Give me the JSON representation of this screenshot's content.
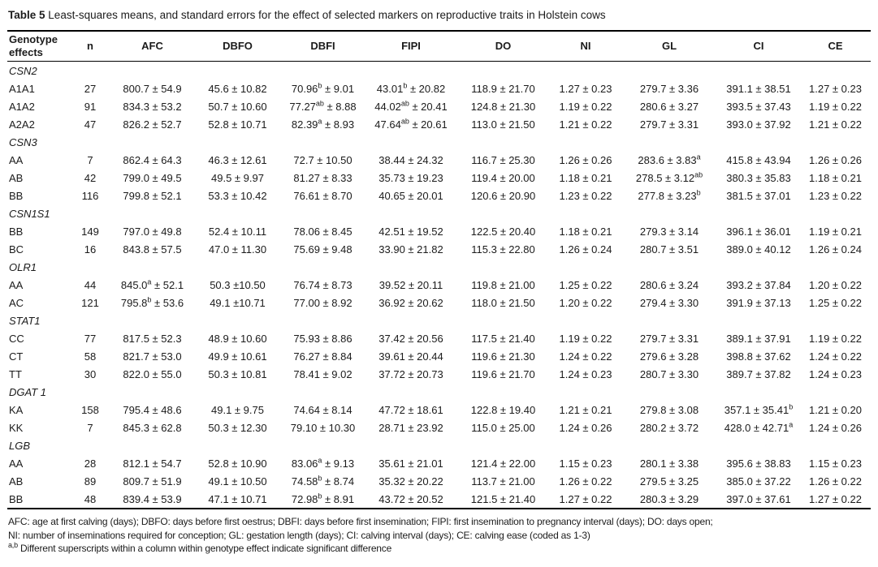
{
  "title": {
    "label": "Table 5",
    "text": "Least-squares means, and standard errors for the effect of selected markers on reproductive traits in Holstein cows"
  },
  "table": {
    "columns": [
      "Genotype effects",
      "n",
      "AFC",
      "DBFO",
      "DBFI",
      "FIPI",
      "DO",
      "NI",
      "GL",
      "CI",
      "CE"
    ],
    "groups": [
      {
        "gene": "CSN2",
        "rows": [
          [
            "A1A1",
            "27",
            "800.7 ± 54.9",
            "45.6 ± 10.82",
            "70.96^{b} ± 9.01",
            "43.01^{b} ± 20.82",
            "118.9 ± 21.70",
            "1.27 ± 0.23",
            "279.7 ± 3.36",
            "391.1 ± 38.51",
            "1.27 ± 0.23"
          ],
          [
            "A1A2",
            "91",
            "834.3 ± 53.2",
            "50.7 ± 10.60",
            "77.27^{ab} ± 8.88",
            "44.02^{ab} ± 20.41",
            "124.8 ± 21.30",
            "1.19 ± 0.22",
            "280.6 ± 3.27",
            "393.5 ± 37.43",
            "1.19 ± 0.22"
          ],
          [
            "A2A2",
            "47",
            "826.2 ± 52.7",
            "52.8 ± 10.71",
            "82.39^{a} ± 8.93",
            "47.64^{ab} ± 20.61",
            "113.0 ± 21.50",
            "1.21 ± 0.22",
            "279.7 ± 3.31",
            "393.0 ± 37.92",
            "1.21 ± 0.22"
          ]
        ]
      },
      {
        "gene": "CSN3",
        "rows": [
          [
            "AA",
            "7",
            "862.4 ± 64.3",
            "46.3 ± 12.61",
            "72.7 ± 10.50",
            "38.44 ± 24.32",
            "116.7 ± 25.30",
            "1.26 ± 0.26",
            "283.6 ± 3.83^{a}",
            "415.8 ± 43.94",
            "1.26 ± 0.26"
          ],
          [
            "AB",
            "42",
            "799.0 ± 49.5",
            "49.5 ± 9.97",
            "81.27 ± 8.33",
            "35.73 ± 19.23",
            "119.4 ± 20.00",
            "1.18 ± 0.21",
            "278.5 ± 3.12^{ab}",
            "380.3 ± 35.83",
            "1.18 ± 0.21"
          ],
          [
            "BB",
            "116",
            "799.8 ± 52.1",
            "53.3 ± 10.42",
            "76.61 ± 8.70",
            "40.65 ± 20.01",
            "120.6 ± 20.90",
            "1.23 ± 0.22",
            "277.8 ± 3.23^{b}",
            "381.5 ± 37.01",
            "1.23 ± 0.22"
          ]
        ]
      },
      {
        "gene": "CSN1S1",
        "rows": [
          [
            "BB",
            "149",
            "797.0 ± 49.8",
            "52.4 ± 10.11",
            "78.06 ± 8.45",
            "42.51 ± 19.52",
            "122.5 ± 20.40",
            "1.18 ± 0.21",
            "279.3 ± 3.14",
            "396.1 ± 36.01",
            "1.19 ± 0.21"
          ],
          [
            "BC",
            "16",
            "843.8 ± 57.5",
            "47.0 ± 11.30",
            "75.69 ± 9.48",
            "33.90 ± 21.82",
            "115.3 ± 22.80",
            "1.26 ± 0.24",
            "280.7 ± 3.51",
            "389.0 ± 40.12",
            "1.26 ± 0.24"
          ]
        ]
      },
      {
        "gene": "OLR1",
        "rows": [
          [
            "AA",
            "44",
            "845.0^{a} ± 52.1",
            "50.3 ±10.50",
            "76.74 ± 8.73",
            "39.52 ± 20.11",
            "119.8 ± 21.00",
            "1.25 ± 0.22",
            "280.6 ± 3.24",
            "393.2 ± 37.84",
            "1.20 ± 0.22"
          ],
          [
            "AC",
            "121",
            "795.8^{b} ± 53.6",
            "49.1 ±10.71",
            "77.00 ± 8.92",
            "36.92 ± 20.62",
            "118.0 ± 21.50",
            "1.20 ± 0.22",
            "279.4 ± 3.30",
            "391.9 ± 37.13",
            "1.25 ± 0.22"
          ]
        ]
      },
      {
        "gene": "STAT1",
        "rows": [
          [
            "CC",
            "77",
            "817.5 ± 52.3",
            "48.9 ± 10.60",
            "75.93 ± 8.86",
            "37.42 ± 20.56",
            "117.5 ± 21.40",
            "1.19 ± 0.22",
            "279.7 ± 3.31",
            "389.1 ± 37.91",
            "1.19 ± 0.22"
          ],
          [
            "CT",
            "58",
            "821.7 ± 53.0",
            "49.9 ± 10.61",
            "76.27 ± 8.84",
            "39.61 ± 20.44",
            "119.6 ± 21.30",
            "1.24 ± 0.22",
            "279.6 ± 3.28",
            "398.8 ± 37.62",
            "1.24 ± 0.22"
          ],
          [
            "TT",
            "30",
            "822.0 ± 55.0",
            "50.3 ± 10.81",
            "78.41 ± 9.02",
            "37.72 ± 20.73",
            "119.6 ± 21.70",
            "1.24 ± 0.23",
            "280.7 ± 3.30",
            "389.7 ± 37.82",
            "1.24 ± 0.23"
          ]
        ]
      },
      {
        "gene": "DGAT 1",
        "rows": [
          [
            "KA",
            "158",
            "795.4 ± 48.6",
            "49.1 ± 9.75",
            "74.64 ± 8.14",
            "47.72 ± 18.61",
            "122.8 ± 19.40",
            "1.21 ± 0.21",
            "279.8 ± 3.08",
            "357.1 ± 35.41^{b}",
            "1.21 ± 0.20"
          ],
          [
            "KK",
            "7",
            "845.3 ± 62.8",
            "50.3 ± 12.30",
            "79.10 ± 10.30",
            "28.71 ± 23.92",
            "115.0 ± 25.00",
            "1.24 ± 0.26",
            "280.2 ± 3.72",
            "428.0 ± 42.71^{a}",
            "1.24 ± 0.26"
          ]
        ]
      },
      {
        "gene": "LGB",
        "rows": [
          [
            "AA",
            "28",
            "812.1 ± 54.7",
            "52.8 ± 10.90",
            "83.06^{a} ± 9.13",
            "35.61 ± 21.01",
            "121.4 ± 22.00",
            "1.15 ± 0.23",
            "280.1 ± 3.38",
            "395.6 ± 38.83",
            "1.15 ± 0.23"
          ],
          [
            "AB",
            "89",
            "809.7 ± 51.9",
            "49.1 ± 10.50",
            "74.58^{b} ± 8.74",
            "35.32 ± 20.22",
            "113.7 ± 21.00",
            "1.26 ± 0.22",
            "279.5 ± 3.25",
            "385.0 ± 37.22",
            "1.26 ± 0.22"
          ],
          [
            "BB",
            "48",
            "839.4 ± 53.9",
            "47.1 ± 10.71",
            "72.98^{b} ± 8.91",
            "43.72 ± 20.52",
            "121.5 ± 21.40",
            "1.27 ± 0.22",
            "280.3 ± 3.29",
            "397.0 ± 37.61",
            "1.27 ± 0.22"
          ]
        ]
      }
    ]
  },
  "footnotes": {
    "line1": "AFC: age at first calving (days); DBFO: days before first oestrus; DBFI: days before first insemination; FIPI: first insemination to pregnancy interval (days); DO: days open;",
    "line2": "NI: number of inseminations required for conception; GL: gestation length (days); CI: calving interval (days); CE: calving ease (coded as 1-3)",
    "line3_sup": "a,b",
    "line3_text": " Different superscripts within a column within genotype effect indicate significant difference"
  },
  "colors": {
    "background": "#ffffff",
    "text": "#1b1b1b",
    "rule": "#000000"
  }
}
